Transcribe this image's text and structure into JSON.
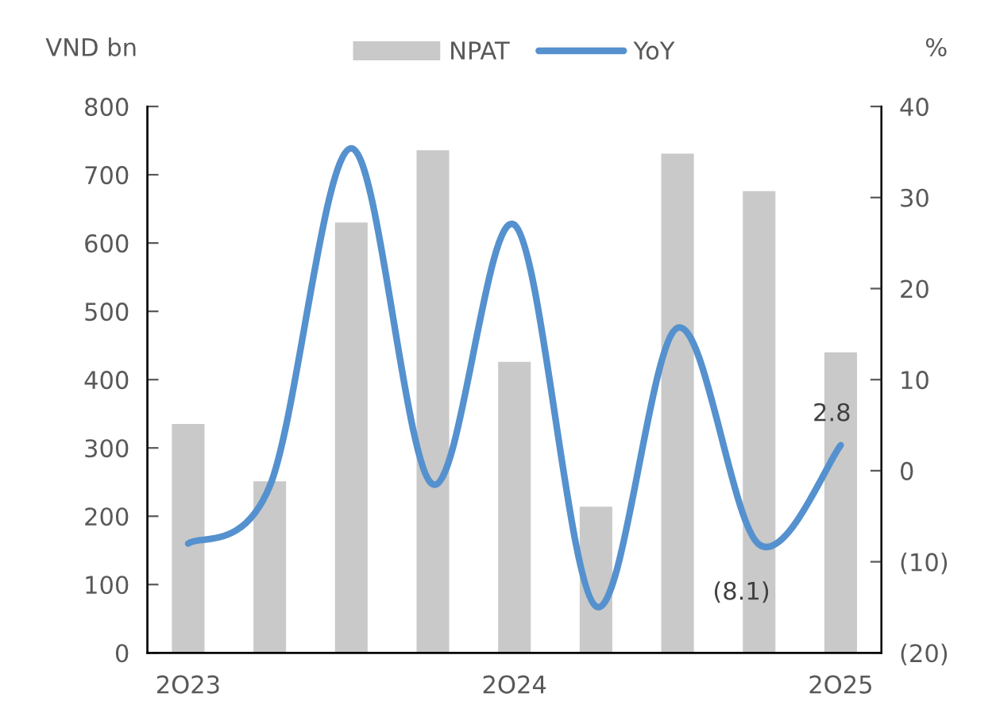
{
  "chart_data": {
    "type": "bar",
    "categories": [
      "2O23",
      null,
      null,
      null,
      "2O24",
      null,
      null,
      null,
      "2O25"
    ],
    "ylabel": "VND bn",
    "y2label": "%",
    "series": [
      {
        "name": "NPAT",
        "color": "#c9c9c9",
        "values": [
          335,
          251,
          630,
          736,
          426,
          214,
          731,
          676,
          440
        ]
      },
      {
        "name": "YoY",
        "type": "line",
        "axis": "y2",
        "color": "#5591ce",
        "values": [
          -8.0,
          -1.7,
          35.4,
          -1.5,
          27.0,
          -14.9,
          15.7,
          -8.1,
          2.8
        ],
        "value_labels": [
          null,
          null,
          null,
          null,
          null,
          null,
          null,
          "(8.1)",
          "2.8"
        ]
      }
    ],
    "ylim": [
      0,
      800
    ],
    "yticks": [
      0,
      100,
      200,
      300,
      400,
      500,
      600,
      700,
      800
    ],
    "y2lim": [
      -20,
      40
    ],
    "y2ticks": [
      {
        "value": -20,
        "label": "(20)"
      },
      {
        "value": -10,
        "label": "(10)"
      },
      0,
      10,
      20,
      30,
      40
    ],
    "legend": "top",
    "grid": false,
    "marker": "none",
    "line_style": "solid"
  }
}
